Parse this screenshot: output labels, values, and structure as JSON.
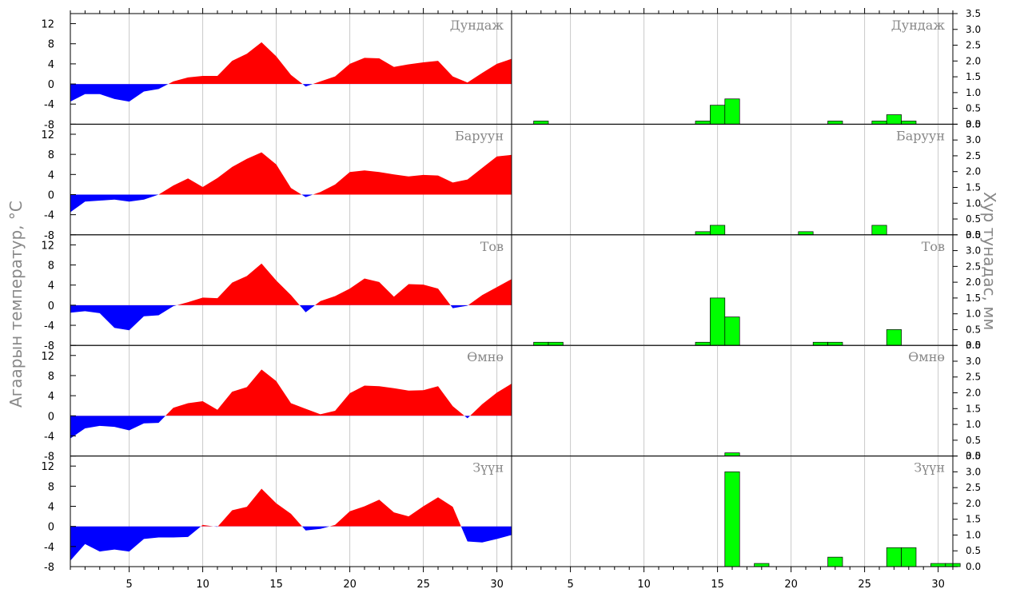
{
  "labels": {
    "left_axis_title": "Агаарын температур, °C",
    "right_axis_title": "Хур тунадас, мм"
  },
  "colors": {
    "positive_temp": "#ff0000",
    "negative_temp": "#0000ff",
    "precip": "#00ff00",
    "grid": "#c8c8c8",
    "station_label": "#888888"
  },
  "chart_data": {
    "type": "area",
    "x": [
      1,
      2,
      3,
      4,
      5,
      6,
      7,
      8,
      9,
      10,
      11,
      12,
      13,
      14,
      15,
      16,
      17,
      18,
      19,
      20,
      21,
      22,
      23,
      24,
      25,
      26,
      27,
      28,
      29,
      30,
      31
    ],
    "x_ticks": [
      5,
      10,
      15,
      20,
      25,
      30
    ],
    "temp_ylim": [
      -8,
      14
    ],
    "temp_ticks": [
      -8,
      -4,
      0,
      4,
      8,
      12
    ],
    "precip_ylim": [
      0,
      3.5
    ],
    "precip_ticks": [
      "0.0",
      "0.5",
      "1.0",
      "1.5",
      "2.0",
      "2.5",
      "3.0",
      "3.5"
    ],
    "grid": true,
    "panels": [
      {
        "station": "Дундаж",
        "temperature": [
          -3.5,
          -2,
          -2,
          -3,
          -3.5,
          -1.5,
          -1,
          0.5,
          1.3,
          1.6,
          1.6,
          4.6,
          6,
          8.3,
          5.5,
          1.8,
          -0.5,
          0.5,
          1.5,
          4,
          5.2,
          5.1,
          3.4,
          3.9,
          4.3,
          4.6,
          1.5,
          0.3,
          2.2,
          4,
          5
        ],
        "precipitation": [
          0,
          0,
          0.1,
          0,
          0,
          0,
          0,
          0,
          0,
          0,
          0,
          0,
          0,
          0.1,
          0.6,
          0.8,
          0,
          0,
          0,
          0,
          0,
          0,
          0.1,
          0,
          0,
          0.1,
          0.3,
          0.1,
          0,
          0,
          0
        ]
      },
      {
        "station": "Баруун",
        "temperature": [
          -3.5,
          -1.4,
          -1.2,
          -1,
          -1.4,
          -1,
          0,
          1.8,
          3.2,
          1.5,
          3.3,
          5.5,
          7.1,
          8.4,
          6,
          1.3,
          -0.5,
          0.5,
          2,
          4.5,
          4.8,
          4.5,
          4,
          3.6,
          3.9,
          3.8,
          2.4,
          3,
          5.3,
          7.6,
          7.9
        ],
        "precipitation": [
          0,
          0,
          0,
          0,
          0,
          0,
          0,
          0,
          0,
          0,
          0,
          0,
          0,
          0.1,
          0.3,
          0,
          0,
          0,
          0,
          0,
          0.1,
          0,
          0,
          0,
          0,
          0.3,
          0,
          0,
          0,
          0,
          0
        ]
      },
      {
        "station": "Тов",
        "temperature": [
          -1.5,
          -1.2,
          -1.6,
          -4.5,
          -5,
          -2.2,
          -2,
          -0.2,
          0.6,
          1.5,
          1.4,
          4.5,
          5.8,
          8.3,
          4.9,
          2,
          -1.4,
          0.8,
          1.8,
          3.3,
          5.3,
          4.6,
          1.7,
          4.2,
          4.1,
          3.3,
          -0.6,
          -0.1,
          2,
          3.6,
          5.2
        ],
        "precipitation": [
          0,
          0,
          0.1,
          0.1,
          0,
          0,
          0,
          0,
          0,
          0,
          0,
          0,
          0,
          0.1,
          1.5,
          0.9,
          0,
          0,
          0,
          0,
          0,
          0.1,
          0.1,
          0,
          0,
          0,
          0.5,
          0,
          0,
          0,
          0
        ]
      },
      {
        "station": "Өмнө",
        "temperature": [
          -4.5,
          -2.5,
          -2,
          -2.2,
          -2.9,
          -1.5,
          -1.4,
          1.6,
          2.5,
          2.9,
          1.2,
          4.8,
          5.7,
          9.2,
          6.9,
          2.5,
          1.4,
          0.3,
          1,
          4.5,
          6,
          5.9,
          5.5,
          5,
          5.1,
          5.9,
          1.9,
          -0.5,
          2.3,
          4.6,
          6.4
        ],
        "precipitation": [
          0,
          0,
          0,
          0,
          0,
          0,
          0,
          0,
          0,
          0,
          0,
          0,
          0,
          0,
          0,
          0.1,
          0,
          0,
          0,
          0,
          0,
          0,
          0,
          0,
          0,
          0,
          0,
          0,
          0,
          0,
          0
        ]
      },
      {
        "station": "Зүүн",
        "temperature": [
          -6.8,
          -3.5,
          -5,
          -4.6,
          -5,
          -2.5,
          -2.2,
          -2.2,
          -2.1,
          0.3,
          -0.1,
          3.2,
          3.9,
          7.5,
          4.6,
          2.5,
          -0.8,
          -0.5,
          0.3,
          3,
          4,
          5.3,
          2.8,
          2,
          4,
          5.8,
          3.9,
          -3,
          -3.2,
          -2.5,
          -1.7
        ],
        "precipitation": [
          0,
          0,
          0,
          0,
          0,
          0,
          0,
          0,
          0,
          0,
          0,
          0,
          0,
          0,
          0,
          3.0,
          0,
          0.1,
          0,
          0,
          0,
          0,
          0.3,
          0,
          0,
          0,
          0.6,
          0.6,
          0,
          0.1,
          0.1
        ]
      }
    ]
  }
}
